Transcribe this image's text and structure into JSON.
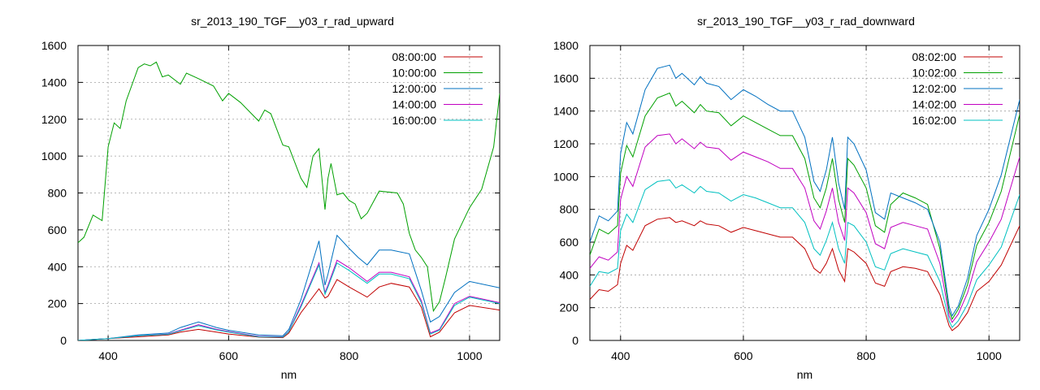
{
  "chart_data": [
    {
      "type": "line",
      "title": "sr_2013_190_TGF__y03_r_rad_upward",
      "xlabel": "nm",
      "ylabel": "",
      "xlim": [
        350,
        1050
      ],
      "ylim": [
        0,
        1600
      ],
      "xticks": [
        400,
        600,
        800,
        1000
      ],
      "yticks": [
        0,
        200,
        400,
        600,
        800,
        1000,
        1200,
        1400,
        1600
      ],
      "grid": true,
      "legend_position": "top-right",
      "series": [
        {
          "name": "08:00:00",
          "color": "#c00000",
          "x": [
            350,
            400,
            450,
            500,
            520,
            550,
            580,
            600,
            650,
            690,
            700,
            720,
            750,
            760,
            765,
            780,
            800,
            830,
            850,
            870,
            900,
            920,
            935,
            950,
            975,
            1000,
            1050
          ],
          "y": [
            0,
            10,
            20,
            30,
            45,
            60,
            45,
            35,
            18,
            15,
            40,
            150,
            280,
            230,
            240,
            330,
            290,
            235,
            290,
            310,
            290,
            180,
            20,
            45,
            150,
            190,
            165
          ]
        },
        {
          "name": "10:00:00",
          "color": "#00a000",
          "x": [
            350,
            360,
            375,
            390,
            400,
            410,
            420,
            430,
            450,
            460,
            470,
            480,
            490,
            500,
            520,
            530,
            550,
            575,
            590,
            600,
            620,
            650,
            660,
            670,
            690,
            700,
            720,
            730,
            740,
            750,
            760,
            765,
            770,
            780,
            790,
            800,
            810,
            820,
            830,
            850,
            880,
            890,
            900,
            910,
            920,
            930,
            940,
            950,
            960,
            975,
            1000,
            1020,
            1040,
            1050
          ],
          "y": [
            530,
            560,
            680,
            650,
            1050,
            1180,
            1150,
            1300,
            1480,
            1500,
            1490,
            1510,
            1430,
            1440,
            1390,
            1450,
            1420,
            1380,
            1300,
            1340,
            1290,
            1190,
            1250,
            1230,
            1060,
            1050,
            880,
            830,
            1000,
            1040,
            710,
            880,
            960,
            790,
            800,
            760,
            740,
            660,
            690,
            810,
            800,
            740,
            580,
            490,
            450,
            400,
            160,
            210,
            340,
            550,
            720,
            820,
            1050,
            1340
          ]
        },
        {
          "name": "12:00:00",
          "color": "#0070c0",
          "x": [
            350,
            400,
            450,
            500,
            520,
            550,
            580,
            600,
            650,
            690,
            700,
            720,
            750,
            760,
            765,
            780,
            800,
            815,
            830,
            850,
            870,
            900,
            920,
            935,
            950,
            975,
            1000,
            1050
          ],
          "y": [
            0,
            10,
            30,
            40,
            70,
            100,
            70,
            55,
            30,
            25,
            60,
            220,
            540,
            300,
            360,
            570,
            500,
            450,
            410,
            490,
            490,
            470,
            270,
            100,
            130,
            260,
            320,
            285
          ]
        },
        {
          "name": "14:00:00",
          "color": "#c000c0",
          "x": [
            350,
            400,
            450,
            500,
            520,
            550,
            580,
            600,
            650,
            690,
            700,
            720,
            750,
            760,
            765,
            780,
            800,
            830,
            850,
            870,
            900,
            920,
            935,
            950,
            975,
            1000,
            1050
          ],
          "y": [
            0,
            10,
            25,
            35,
            55,
            85,
            60,
            48,
            22,
            20,
            50,
            190,
            420,
            260,
            300,
            435,
            395,
            320,
            370,
            370,
            345,
            215,
            40,
            60,
            200,
            240,
            205
          ]
        },
        {
          "name": "16:00:00",
          "color": "#00c0c0",
          "x": [
            350,
            400,
            450,
            500,
            520,
            550,
            580,
            600,
            650,
            690,
            700,
            720,
            750,
            760,
            765,
            780,
            800,
            830,
            850,
            870,
            900,
            920,
            935,
            950,
            975,
            1000,
            1050
          ],
          "y": [
            0,
            10,
            25,
            33,
            52,
            80,
            57,
            45,
            20,
            18,
            48,
            180,
            410,
            250,
            290,
            420,
            380,
            310,
            360,
            360,
            335,
            205,
            35,
            55,
            190,
            235,
            200
          ]
        }
      ]
    },
    {
      "type": "line",
      "title": "sr_2013_190_TGF__y03_r_rad_downward",
      "xlabel": "nm",
      "ylabel": "",
      "xlim": [
        350,
        1050
      ],
      "ylim": [
        0,
        1800
      ],
      "xticks": [
        400,
        600,
        800,
        1000
      ],
      "yticks": [
        0,
        200,
        400,
        600,
        800,
        1000,
        1200,
        1400,
        1600,
        1800
      ],
      "grid": true,
      "legend_position": "top-right",
      "series": [
        {
          "name": "08:02:00",
          "color": "#c00000",
          "x": [
            350,
            365,
            380,
            395,
            400,
            410,
            420,
            440,
            460,
            480,
            490,
            500,
            520,
            530,
            540,
            560,
            580,
            600,
            620,
            640,
            660,
            680,
            700,
            715,
            725,
            735,
            745,
            755,
            765,
            770,
            780,
            800,
            815,
            830,
            840,
            860,
            880,
            900,
            920,
            935,
            940,
            950,
            965,
            980,
            1000,
            1020,
            1050
          ],
          "y": [
            250,
            310,
            300,
            340,
            470,
            580,
            550,
            700,
            740,
            750,
            720,
            730,
            700,
            730,
            710,
            700,
            660,
            690,
            670,
            650,
            630,
            630,
            560,
            440,
            410,
            470,
            560,
            430,
            360,
            560,
            540,
            470,
            350,
            330,
            420,
            450,
            440,
            420,
            280,
            90,
            60,
            90,
            170,
            300,
            360,
            460,
            700
          ]
        },
        {
          "name": "10:02:00",
          "color": "#00a000",
          "x": [
            350,
            365,
            380,
            395,
            400,
            410,
            420,
            440,
            460,
            480,
            490,
            500,
            520,
            530,
            540,
            560,
            580,
            600,
            620,
            640,
            660,
            680,
            700,
            715,
            725,
            735,
            745,
            755,
            765,
            770,
            780,
            800,
            815,
            830,
            840,
            860,
            880,
            900,
            920,
            935,
            940,
            950,
            965,
            980,
            1000,
            1020,
            1050
          ],
          "y": [
            520,
            680,
            650,
            700,
            1020,
            1190,
            1120,
            1370,
            1480,
            1510,
            1430,
            1460,
            1390,
            1440,
            1400,
            1390,
            1310,
            1370,
            1330,
            1290,
            1250,
            1250,
            1110,
            870,
            810,
            930,
            1110,
            860,
            720,
            1110,
            1070,
            930,
            700,
            660,
            830,
            900,
            870,
            830,
            560,
            180,
            130,
            190,
            340,
            580,
            720,
            910,
            1380
          ]
        },
        {
          "name": "12:02:00",
          "color": "#0070c0",
          "x": [
            350,
            365,
            380,
            395,
            400,
            410,
            420,
            440,
            460,
            480,
            490,
            500,
            520,
            530,
            540,
            560,
            580,
            600,
            620,
            640,
            660,
            680,
            700,
            715,
            725,
            735,
            745,
            755,
            765,
            770,
            780,
            800,
            815,
            830,
            840,
            860,
            880,
            900,
            920,
            935,
            940,
            950,
            965,
            980,
            1000,
            1020,
            1050
          ],
          "y": [
            600,
            760,
            730,
            790,
            1140,
            1330,
            1260,
            1530,
            1660,
            1680,
            1600,
            1630,
            1560,
            1610,
            1570,
            1550,
            1470,
            1530,
            1490,
            1440,
            1400,
            1400,
            1240,
            970,
            910,
            1040,
            1240,
            960,
            800,
            1240,
            1200,
            1040,
            780,
            740,
            900,
            870,
            840,
            800,
            600,
            210,
            150,
            210,
            380,
            640,
            800,
            1010,
            1470
          ]
        },
        {
          "name": "14:02:00",
          "color": "#c000c0",
          "x": [
            350,
            365,
            380,
            395,
            400,
            410,
            420,
            440,
            460,
            480,
            490,
            500,
            520,
            530,
            540,
            560,
            580,
            600,
            620,
            640,
            660,
            680,
            700,
            715,
            725,
            735,
            745,
            755,
            765,
            770,
            780,
            800,
            815,
            830,
            840,
            860,
            880,
            900,
            920,
            935,
            940,
            950,
            965,
            980,
            1000,
            1020,
            1050
          ],
          "y": [
            440,
            510,
            490,
            540,
            860,
            1000,
            940,
            1180,
            1250,
            1260,
            1200,
            1230,
            1170,
            1210,
            1180,
            1170,
            1100,
            1150,
            1120,
            1090,
            1050,
            1050,
            930,
            730,
            680,
            790,
            930,
            720,
            610,
            930,
            900,
            780,
            590,
            560,
            690,
            720,
            700,
            680,
            470,
            150,
            110,
            160,
            290,
            480,
            600,
            740,
            1120
          ]
        },
        {
          "name": "16:02:00",
          "color": "#00c0c0",
          "x": [
            350,
            365,
            380,
            395,
            400,
            410,
            420,
            440,
            460,
            480,
            490,
            500,
            520,
            530,
            540,
            560,
            580,
            600,
            620,
            640,
            660,
            680,
            700,
            715,
            725,
            735,
            745,
            755,
            765,
            770,
            780,
            800,
            815,
            830,
            840,
            860,
            880,
            900,
            920,
            935,
            940,
            950,
            965,
            980,
            1000,
            1020,
            1050
          ],
          "y": [
            330,
            420,
            410,
            440,
            670,
            770,
            720,
            920,
            970,
            980,
            930,
            950,
            900,
            940,
            910,
            900,
            850,
            890,
            870,
            840,
            810,
            810,
            720,
            560,
            520,
            610,
            720,
            560,
            470,
            720,
            700,
            600,
            450,
            430,
            530,
            560,
            540,
            520,
            360,
            120,
            80,
            120,
            220,
            370,
            460,
            570,
            890
          ]
        }
      ]
    }
  ]
}
